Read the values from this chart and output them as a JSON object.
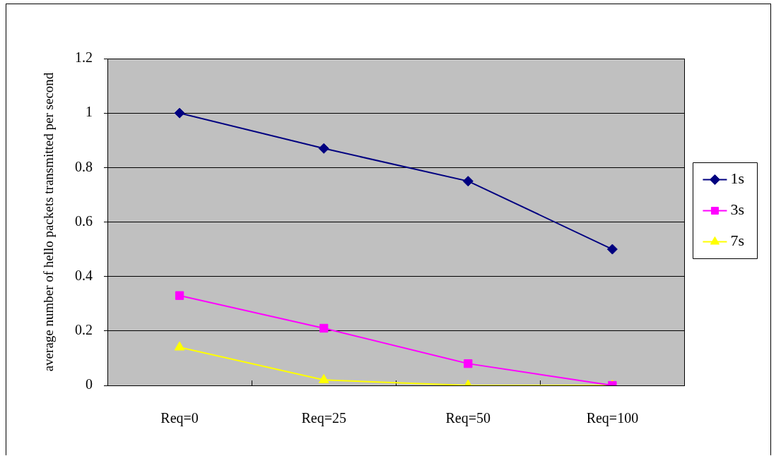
{
  "chart_data": {
    "type": "line",
    "ylabel": "average number of hello packets transmitted per second",
    "categories": [
      "Req=0",
      "Req=25",
      "Req=50",
      "Req=100"
    ],
    "series": [
      {
        "name": "1s",
        "color": "#000080",
        "marker": "diamond",
        "values": [
          1,
          0.87,
          0.75,
          0.5
        ]
      },
      {
        "name": "3s",
        "color": "#ff00ff",
        "marker": "square",
        "values": [
          0.33,
          0.21,
          0.08,
          0
        ]
      },
      {
        "name": "7s",
        "color": "#ffff00",
        "marker": "triangle",
        "values": [
          0.14,
          0.02,
          0,
          0
        ]
      }
    ],
    "ylim": [
      0,
      1.2
    ],
    "yticks": [
      0,
      0.2,
      0.4,
      0.6,
      0.8,
      1,
      1.2
    ],
    "grid": "y",
    "legend": "right"
  }
}
